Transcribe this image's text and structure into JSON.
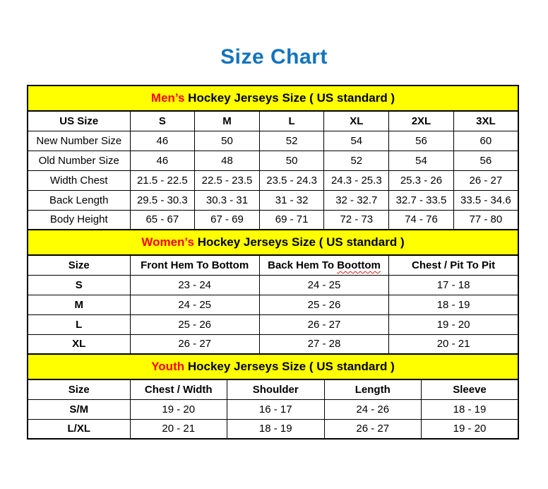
{
  "page": {
    "title": "Size Chart"
  },
  "colors": {
    "title_blue": "#1273be",
    "band_yellow": "#ffff00",
    "accent_red": "#ff0000",
    "border_black": "#000000"
  },
  "tables": [
    {
      "id": "mens",
      "caption_highlight": "Men’s",
      "caption_rest": " Hockey Jerseys Size ( US standard )",
      "columns": [
        "US Size",
        "S",
        "M",
        "L",
        "XL",
        "2XL",
        "3XL"
      ],
      "rows": [
        [
          "New Number Size",
          "46",
          "50",
          "52",
          "54",
          "56",
          "60"
        ],
        [
          "Old Number Size",
          "46",
          "48",
          "50",
          "52",
          "54",
          "56"
        ],
        [
          "Width Chest",
          "21.5 - 22.5",
          "22.5 - 23.5",
          "23.5 - 24.3",
          "24.3 - 25.3",
          "25.3 - 26",
          "26 - 27"
        ],
        [
          "Back Length",
          "29.5 - 30.3",
          "30.3 - 31",
          "31 - 32",
          "32 - 32.7",
          "32.7 - 33.5",
          "33.5 - 34.6"
        ],
        [
          "Body Height",
          "65 - 67",
          "67 - 69",
          "69 - 71",
          "72 - 73",
          "74 - 76",
          "77 - 80"
        ]
      ]
    },
    {
      "id": "womens",
      "caption_highlight": "Women’s",
      "caption_rest": " Hockey Jerseys Size ( US standard )",
      "columns": [
        "Size",
        "Front Hem To Bottom",
        "Back Hem To Boottom",
        "Chest / Pit To Pit"
      ],
      "squiggle_col": 2,
      "squiggle_word": "Boottom",
      "rows": [
        [
          "S",
          "23 - 24",
          "24 - 25",
          "17 - 18"
        ],
        [
          "M",
          "24 - 25",
          "25 - 26",
          "18 - 19"
        ],
        [
          "L",
          "25 - 26",
          "26 - 27",
          "19 - 20"
        ],
        [
          "XL",
          "26 - 27",
          "27 - 28",
          "20 - 21"
        ]
      ]
    },
    {
      "id": "youth",
      "caption_highlight": "Youth",
      "caption_rest": " Hockey Jerseys Size ( US standard )",
      "columns": [
        "Size",
        "Chest / Width",
        "Shoulder",
        "Length",
        "Sleeve"
      ],
      "rows": [
        [
          "S/M",
          "19 - 20",
          "16 - 17",
          "24 - 26",
          "18 - 19"
        ],
        [
          "L/XL",
          "20 - 21",
          "18 - 19",
          "26 - 27",
          "19 - 20"
        ]
      ]
    }
  ]
}
